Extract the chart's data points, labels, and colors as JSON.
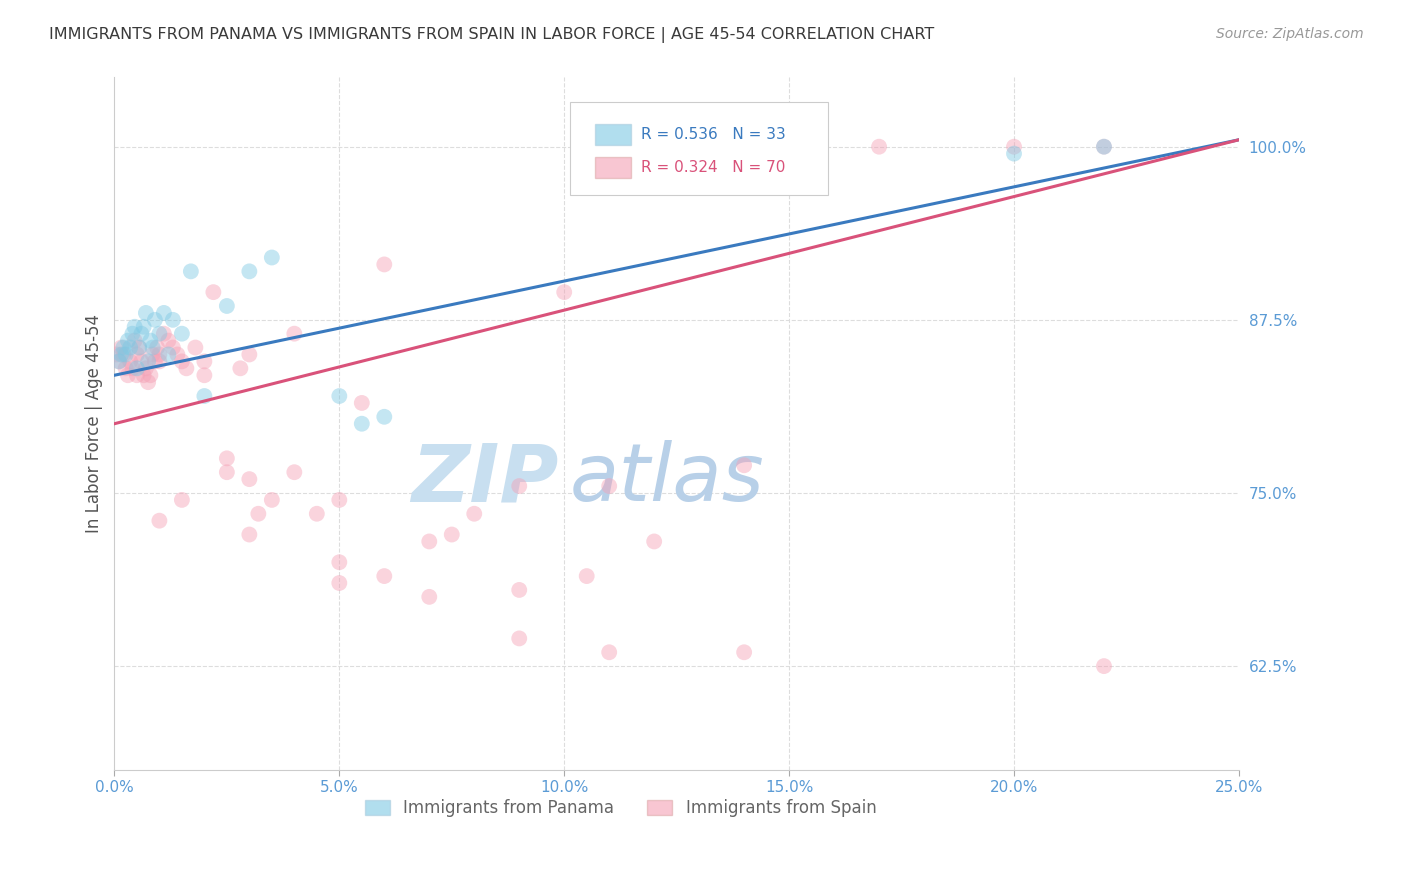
{
  "title": "IMMIGRANTS FROM PANAMA VS IMMIGRANTS FROM SPAIN IN LABOR FORCE | AGE 45-54 CORRELATION CHART",
  "source": "Source: ZipAtlas.com",
  "ylabel": "In Labor Force | Age 45-54",
  "xlabel_ticks": [
    "0.0%",
    "5.0%",
    "10.0%",
    "15.0%",
    "20.0%",
    "25.0%"
  ],
  "xlabel_vals": [
    0.0,
    5.0,
    10.0,
    15.0,
    20.0,
    25.0
  ],
  "ylabel_ticks": [
    "62.5%",
    "75.0%",
    "87.5%",
    "100.0%"
  ],
  "ylabel_vals": [
    62.5,
    75.0,
    87.5,
    100.0
  ],
  "xlim": [
    0.0,
    25.0
  ],
  "ylim": [
    55.0,
    105.0
  ],
  "legend_blue_r": "R = 0.536",
  "legend_blue_n": "N = 33",
  "legend_pink_r": "R = 0.324",
  "legend_pink_n": "N = 70",
  "blue_color": "#7ec8e3",
  "pink_color": "#f4a0b5",
  "blue_line_color": "#3a7abf",
  "pink_line_color": "#d9527a",
  "axis_label_color": "#5b9bd5",
  "watermark_zip_color": "#c8dff0",
  "watermark_atlas_color": "#b8cfe8",
  "title_color": "#3a3a3a",
  "panama_x": [
    0.1,
    0.15,
    0.2,
    0.25,
    0.3,
    0.35,
    0.4,
    0.45,
    0.5,
    0.55,
    0.6,
    0.65,
    0.7,
    0.75,
    0.8,
    0.85,
    0.9,
    1.0,
    1.1,
    1.2,
    1.3,
    1.5,
    1.7,
    2.0,
    2.5,
    3.0,
    3.5,
    5.0,
    5.5,
    6.0,
    15.0,
    20.0,
    22.0
  ],
  "panama_y": [
    84.5,
    85.0,
    85.5,
    85.0,
    86.0,
    85.5,
    86.5,
    87.0,
    84.0,
    85.5,
    86.5,
    87.0,
    88.0,
    84.5,
    86.0,
    85.5,
    87.5,
    86.5,
    88.0,
    85.0,
    87.5,
    86.5,
    91.0,
    82.0,
    88.5,
    91.0,
    92.0,
    82.0,
    80.0,
    80.5,
    99.5,
    99.5,
    100.0
  ],
  "spain_x": [
    0.05,
    0.1,
    0.15,
    0.2,
    0.25,
    0.3,
    0.35,
    0.4,
    0.45,
    0.5,
    0.55,
    0.6,
    0.65,
    0.7,
    0.75,
    0.8,
    0.85,
    0.9,
    0.95,
    1.0,
    1.1,
    1.2,
    1.3,
    1.4,
    1.5,
    1.6,
    1.8,
    2.0,
    2.2,
    2.5,
    2.8,
    3.0,
    3.2,
    3.5,
    4.0,
    4.5,
    5.0,
    5.5,
    6.0,
    7.0,
    8.0,
    9.0,
    10.0,
    11.0,
    12.0,
    14.0,
    15.0,
    17.0,
    20.0,
    22.0,
    1.0,
    1.5,
    2.5,
    3.0,
    4.0,
    5.0,
    6.0,
    7.5,
    9.0,
    10.5,
    0.5,
    1.0,
    2.0,
    3.0,
    5.0,
    7.0,
    9.0,
    11.0,
    14.0,
    22.0
  ],
  "spain_y": [
    85.0,
    84.5,
    85.5,
    85.0,
    84.0,
    83.5,
    84.5,
    84.0,
    86.0,
    85.0,
    85.5,
    84.5,
    83.5,
    84.0,
    83.0,
    83.5,
    85.0,
    84.5,
    85.5,
    85.0,
    86.5,
    86.0,
    85.5,
    85.0,
    84.5,
    84.0,
    85.5,
    84.5,
    89.5,
    77.5,
    84.0,
    72.0,
    73.5,
    74.5,
    86.5,
    73.5,
    74.5,
    81.5,
    91.5,
    71.5,
    73.5,
    75.5,
    89.5,
    75.5,
    71.5,
    77.0,
    100.0,
    100.0,
    100.0,
    100.0,
    73.0,
    74.5,
    76.5,
    76.0,
    76.5,
    68.5,
    69.0,
    72.0,
    68.0,
    69.0,
    83.5,
    84.5,
    83.5,
    85.0,
    70.0,
    67.5,
    64.5,
    63.5,
    63.5,
    62.5
  ],
  "blue_trend_x0": 0.0,
  "blue_trend_y0": 83.5,
  "blue_trend_x1": 25.0,
  "blue_trend_y1": 100.5,
  "pink_trend_x0": 0.0,
  "pink_trend_y0": 80.0,
  "pink_trend_x1": 25.0,
  "pink_trend_y1": 100.5
}
